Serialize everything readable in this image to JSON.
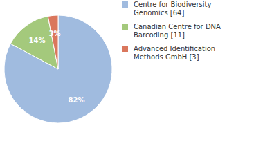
{
  "chart_data": {
    "type": "pie",
    "categories": [
      "Centre for Biodiversity Genomics [64]",
      "Canadian Centre for DNA Barcoding [11]",
      "Advanced Identification Methods GmbH [3]"
    ],
    "values": [
      82,
      14,
      3
    ],
    "value_labels": [
      "82%",
      "14%",
      "3%"
    ],
    "colors": [
      "#a0bbdf",
      "#a4c97c",
      "#da775d"
    ],
    "data_labels": true,
    "legend": "right"
  }
}
